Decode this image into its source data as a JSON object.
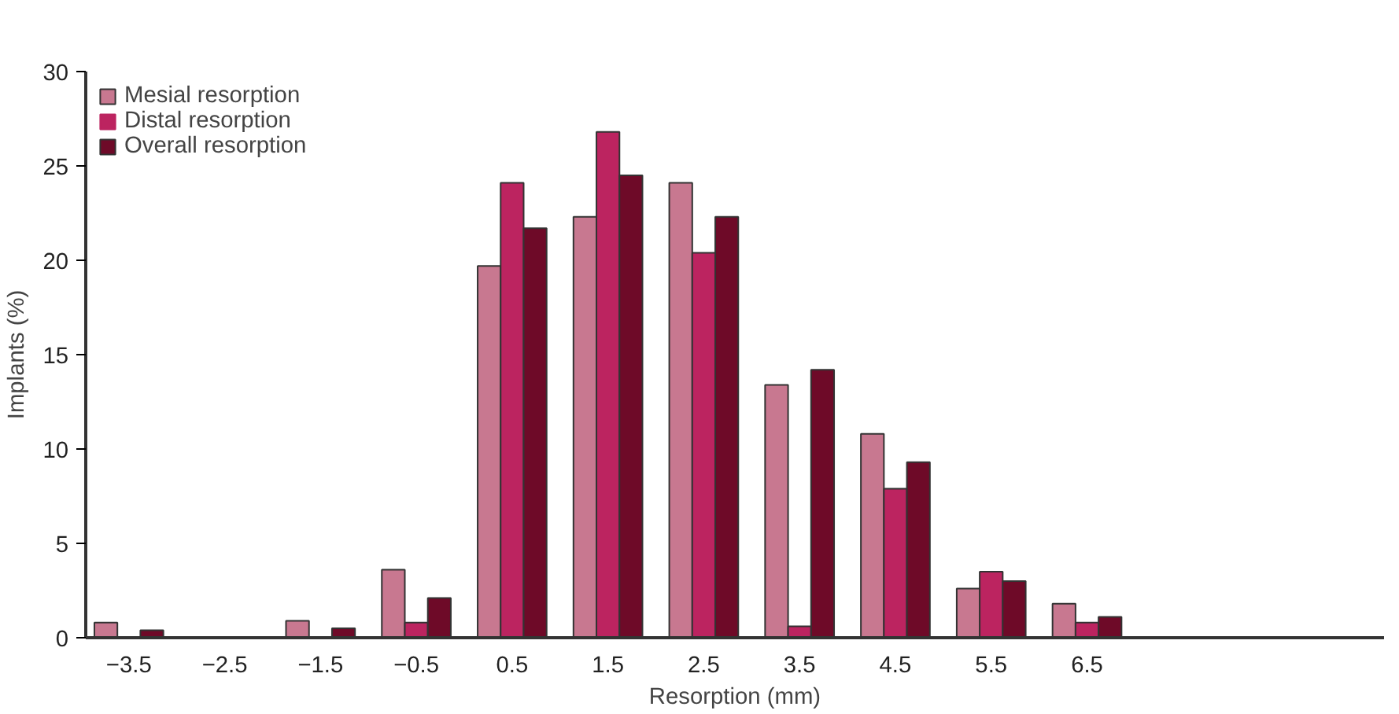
{
  "chart_data": {
    "type": "bar",
    "xlabel": "Resorption (mm)",
    "ylabel": "Implants (%)",
    "x": [
      -3.5,
      -2.5,
      -1.5,
      -0.5,
      0.5,
      1.5,
      2.5,
      3.5,
      4.5,
      5.5,
      6.5
    ],
    "series": [
      {
        "name": "Mesial resorption",
        "color": "#c87890",
        "values": [
          0.8,
          0,
          0.9,
          3.6,
          19.7,
          22.3,
          24.1,
          13.4,
          10.8,
          2.6,
          1.8
        ]
      },
      {
        "name": "Distal resorption",
        "color": "#bc2460",
        "values": [
          0,
          0,
          0,
          0.8,
          24.1,
          26.8,
          20.4,
          0.6,
          7.9,
          3.5,
          0.8
        ]
      },
      {
        "name": "Overall resorption",
        "color": "#6e0a28",
        "values": [
          0.4,
          0,
          0.5,
          2.1,
          21.7,
          24.5,
          22.3,
          14.2,
          9.3,
          3.0,
          1.1
        ]
      }
    ],
    "xlim": [
      -3.95,
      9.6
    ],
    "xticks": [
      {
        "value": -3.5,
        "label": "−3.5"
      },
      {
        "value": -2.5,
        "label": "−2.5"
      },
      {
        "value": -1.5,
        "label": "−1.5"
      },
      {
        "value": -0.5,
        "label": "−0.5"
      },
      0.5,
      1.5,
      2.5,
      3.5,
      4.5,
      5.5,
      6.5
    ],
    "ylim": [
      0,
      30
    ],
    "yticks": [
      0,
      5,
      10,
      15,
      20,
      25,
      30
    ],
    "grid": false,
    "legend": "top left"
  }
}
